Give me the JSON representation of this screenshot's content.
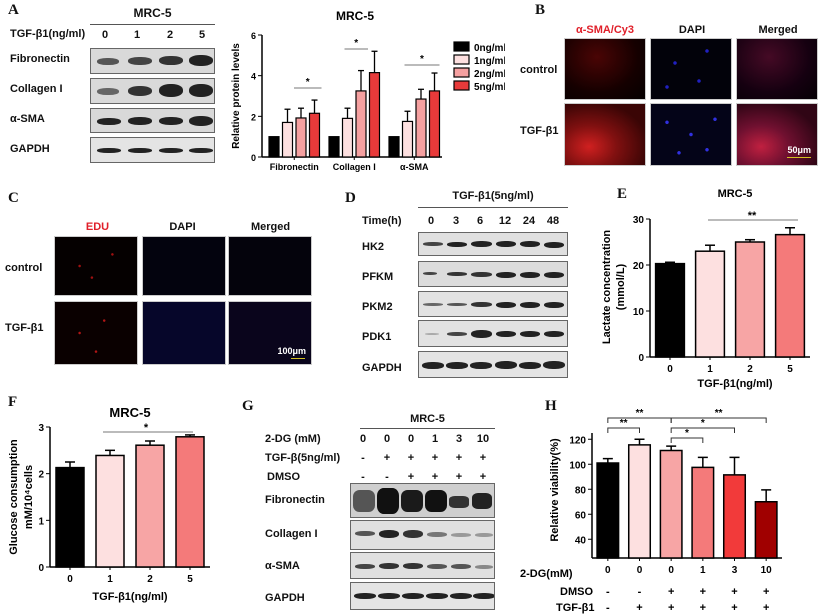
{
  "panels": {
    "A": "A",
    "B": "B",
    "C": "C",
    "D": "D",
    "E": "E",
    "F": "F",
    "G": "G",
    "H": "H"
  },
  "panelA": {
    "cell_line": "MRC-5",
    "dose_label": "TGF-β1(ng/ml)",
    "doses": [
      "0",
      "1",
      "2",
      "5"
    ],
    "rows": [
      "Fibronectin",
      "Collagen I",
      "α-SMA",
      "GAPDH"
    ]
  },
  "panelB": {
    "cols": [
      "α-SMA/Cy3",
      "DAPI",
      "Merged"
    ],
    "rows": [
      "control",
      "TGF-β1"
    ],
    "scale_bar": "50μm"
  },
  "panelC": {
    "cols": [
      "EDU",
      "DAPI",
      "Merged"
    ],
    "rows": [
      "control",
      "TGF-β1"
    ],
    "scale_bar": "100μm"
  },
  "panelD": {
    "treatment": "TGF-β1(5ng/ml)",
    "time_label": "Time(h)",
    "times": [
      "0",
      "3",
      "6",
      "12",
      "24",
      "48"
    ],
    "rows": [
      "HK2",
      "PFKM",
      "PKM2",
      "PDK1",
      "GAPDH"
    ]
  },
  "panelG": {
    "cell_line": "MRC-5",
    "row_labels": [
      "2-DG (mM)",
      "TGF-β(5ng/ml)",
      "DMSO"
    ],
    "dg": [
      "0",
      "0",
      "0",
      "1",
      "3",
      "10"
    ],
    "tgf": [
      "-",
      "+",
      "+",
      "+",
      "+",
      "+"
    ],
    "dmso": [
      "-",
      "-",
      "+",
      "+",
      "+",
      "+"
    ],
    "rows": [
      "Fibronectin",
      "Collagen I",
      "α-SMA",
      "GAPDH"
    ]
  },
  "chart_data": [
    {
      "id": "A-quant",
      "type": "bar",
      "title": "MRC-5",
      "ylabel": "Relative protein levels",
      "ylim": [
        0,
        6
      ],
      "yticks": [
        0,
        2,
        4,
        6
      ],
      "categories": [
        "Fibronectin",
        "Collagen I",
        "α-SMA"
      ],
      "series": [
        {
          "name": "0ng/ml",
          "color": "#000000",
          "values": [
            1.0,
            1.0,
            1.0
          ],
          "err": [
            0,
            0,
            0
          ]
        },
        {
          "name": "1ng/ml",
          "color": "#fde0e0",
          "values": [
            1.7,
            1.9,
            1.75
          ],
          "err": [
            0.65,
            0.5,
            0.5
          ]
        },
        {
          "name": "2ng/ml",
          "color": "#f5a0a0",
          "values": [
            1.92,
            3.25,
            2.85
          ],
          "err": [
            0.48,
            1.0,
            0.48
          ]
        },
        {
          "name": "5ng/ml",
          "color": "#e83a3a",
          "values": [
            2.15,
            4.15,
            3.25
          ],
          "err": [
            0.65,
            1.05,
            0.88
          ]
        }
      ],
      "annotations": [
        "*",
        "*",
        "*"
      ],
      "legend_position": "right"
    },
    {
      "id": "E",
      "type": "bar",
      "title": "MRC-5",
      "xlabel": "TGF-β1(ng/ml)",
      "ylabel": "Lactate concentration (mmol/L)",
      "ylim": [
        0,
        30
      ],
      "yticks": [
        0,
        10,
        20,
        30
      ],
      "categories": [
        "0",
        "1",
        "2",
        "5"
      ],
      "values": [
        20.3,
        23.0,
        25.0,
        26.6
      ],
      "err": [
        0.3,
        1.3,
        0.5,
        1.5
      ],
      "colors": [
        "#000000",
        "#fde0e0",
        "#f7a5a5",
        "#f47a7a"
      ],
      "annotations": [
        "**"
      ]
    },
    {
      "id": "F",
      "type": "bar",
      "title": "MRC-5",
      "xlabel": "TGF-β1(ng/ml)",
      "ylabel": "Glucose consumption mM/10⁴cells",
      "ylim": [
        0,
        3
      ],
      "yticks": [
        0,
        1,
        2,
        3
      ],
      "categories": [
        "0",
        "1",
        "2",
        "5"
      ],
      "values": [
        2.13,
        2.39,
        2.61,
        2.79
      ],
      "err": [
        0.12,
        0.11,
        0.09,
        0.04
      ],
      "colors": [
        "#000000",
        "#fde0e0",
        "#f7a5a5",
        "#f47a7a"
      ],
      "annotations": [
        "*"
      ]
    },
    {
      "id": "H",
      "type": "bar",
      "ylabel": "Relative viability(%)",
      "ylim": [
        25,
        125
      ],
      "yticks": [
        40,
        60,
        80,
        100,
        120
      ],
      "categories": [
        "0",
        "0",
        "0",
        "1",
        "3",
        "10"
      ],
      "values": [
        101,
        115.5,
        111,
        97.5,
        91.5,
        70
      ],
      "err": [
        3.5,
        4.5,
        3.5,
        8,
        14,
        9.5
      ],
      "colors": [
        "#000000",
        "#fde0e0",
        "#f7a5a5",
        "#f47a7a",
        "#f23a3a",
        "#a00000"
      ],
      "row_labels": [
        "2-DG(mM)",
        "DMSO",
        "TGF-β1"
      ],
      "dmso": [
        "-",
        "-",
        "+",
        "+",
        "+",
        "+"
      ],
      "tgf": [
        "-",
        "+",
        "+",
        "+",
        "+",
        "+"
      ],
      "annotations": [
        "**",
        "**",
        "*",
        "*",
        "**"
      ]
    }
  ]
}
